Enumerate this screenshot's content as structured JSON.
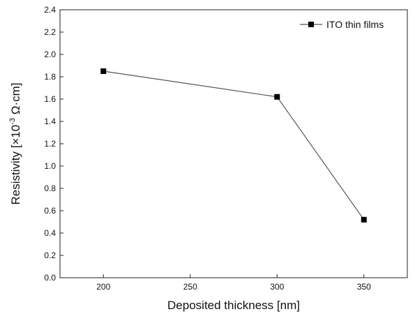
{
  "chart_data": {
    "type": "line",
    "title": "",
    "xlabel": "Deposited thickness [nm]",
    "ylabel": "Resistivity [×10",
    "ylabel_exponent": "-3",
    "ylabel_unit": " Ω·cm]",
    "x_ticks": [
      "200",
      "250",
      "300",
      "350"
    ],
    "y_ticks": [
      "0.0",
      "0.2",
      "0.4",
      "0.6",
      "0.8",
      "1.0",
      "1.2",
      "1.4",
      "1.6",
      "1.8",
      "2.0",
      "2.2",
      "2.4"
    ],
    "xlim": [
      175,
      375
    ],
    "ylim": [
      0,
      2.4
    ],
    "grid": false,
    "legend_position": "top-right",
    "series": [
      {
        "name": "ITO thin films",
        "x": [
          200,
          300,
          350
        ],
        "y": [
          1.85,
          1.62,
          0.52
        ],
        "color": "#555555",
        "marker": "square",
        "marker_color": "#000000"
      }
    ]
  }
}
